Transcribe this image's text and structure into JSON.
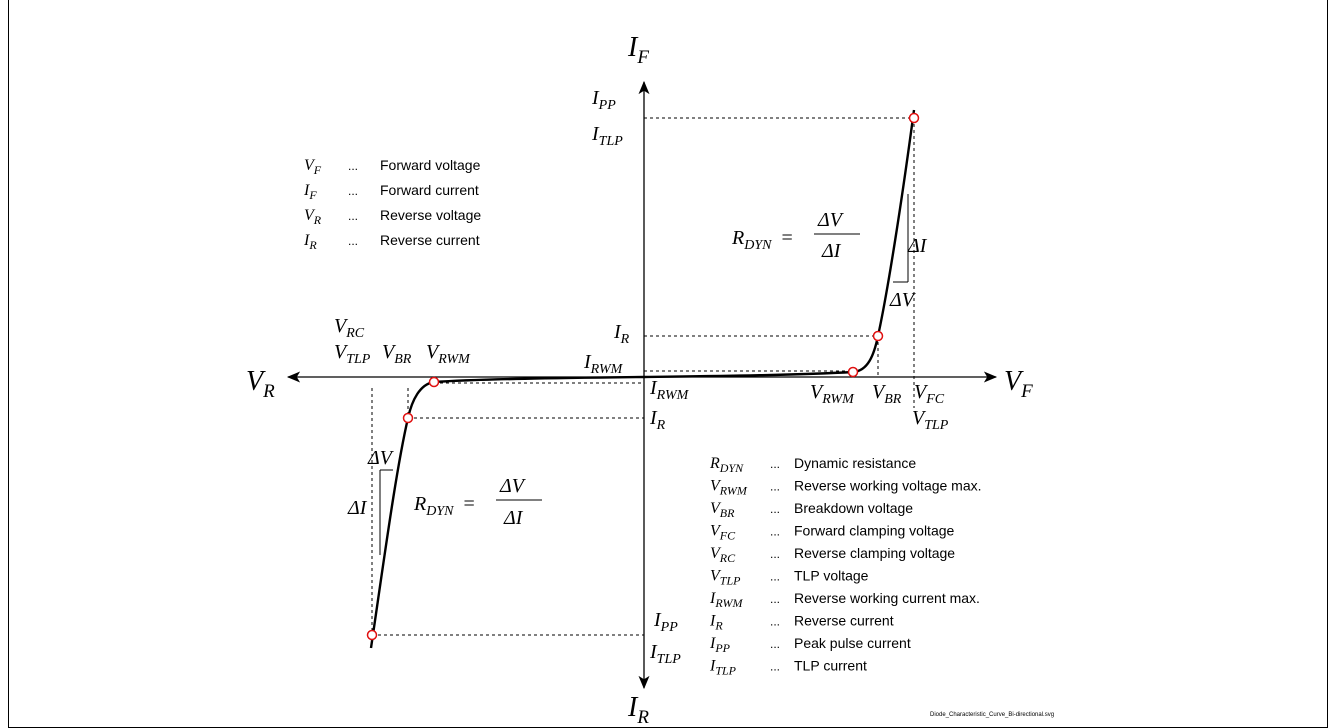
{
  "axes": {
    "if_main": "I",
    "if_sub": "F",
    "ir_main": "I",
    "ir_sub": "R",
    "vr_main": "V",
    "vr_sub": "R",
    "vf_main": "V",
    "vf_sub": "F"
  },
  "labels": {
    "ipp": {
      "main": "I",
      "sub": "PP"
    },
    "itlp": {
      "main": "I",
      "sub": "TLP"
    },
    "ir": {
      "main": "I",
      "sub": "R"
    },
    "irwm": {
      "main": "I",
      "sub": "RWM"
    },
    "vrwm": {
      "main": "V",
      "sub": "RWM"
    },
    "vbr": {
      "main": "V",
      "sub": "BR"
    },
    "vfc": {
      "main": "V",
      "sub": "FC"
    },
    "vtlp": {
      "main": "V",
      "sub": "TLP"
    },
    "vrc": {
      "main": "V",
      "sub": "RC"
    },
    "delta_v": "ΔV",
    "delta_i": "ΔI"
  },
  "formula": {
    "lhs_main": "R",
    "lhs_sub": "DYN",
    "eq": "=",
    "num": "ΔV",
    "den": "ΔI"
  },
  "legend_top": [
    {
      "main": "V",
      "sub": "F",
      "dots": "...",
      "desc": "Forward voltage"
    },
    {
      "main": "I",
      "sub": "F",
      "dots": "...",
      "desc": "Forward current"
    },
    {
      "main": "V",
      "sub": "R",
      "dots": "...",
      "desc": "Reverse voltage"
    },
    {
      "main": "I",
      "sub": "R",
      "dots": "...",
      "desc": "Reverse current"
    }
  ],
  "legend_bottom": [
    {
      "main": "R",
      "sub": "DYN",
      "dots": "...",
      "desc": "Dynamic resistance"
    },
    {
      "main": "V",
      "sub": "RWM",
      "dots": "...",
      "desc": "Reverse working voltage max."
    },
    {
      "main": "V",
      "sub": "BR",
      "dots": "...",
      "desc": "Breakdown voltage"
    },
    {
      "main": "V",
      "sub": "FC",
      "dots": "...",
      "desc": "Forward clamping voltage"
    },
    {
      "main": "V",
      "sub": "RC",
      "dots": "...",
      "desc": "Reverse clamping voltage"
    },
    {
      "main": "V",
      "sub": "TLP",
      "dots": "...",
      "desc": "TLP voltage"
    },
    {
      "main": "I",
      "sub": "RWM",
      "dots": "...",
      "desc": "Reverse working current max."
    },
    {
      "main": "I",
      "sub": "R",
      "dots": "...",
      "desc": "Reverse current"
    },
    {
      "main": "I",
      "sub": "PP",
      "dots": "...",
      "desc": "Peak pulse current"
    },
    {
      "main": "I",
      "sub": "TLP",
      "dots": "...",
      "desc": "TLP current"
    }
  ],
  "filename": "Diode_Characteristic_Curve_Bi-directional.svg",
  "colors": {
    "point_stroke": "#e01010",
    "line": "#000000"
  }
}
